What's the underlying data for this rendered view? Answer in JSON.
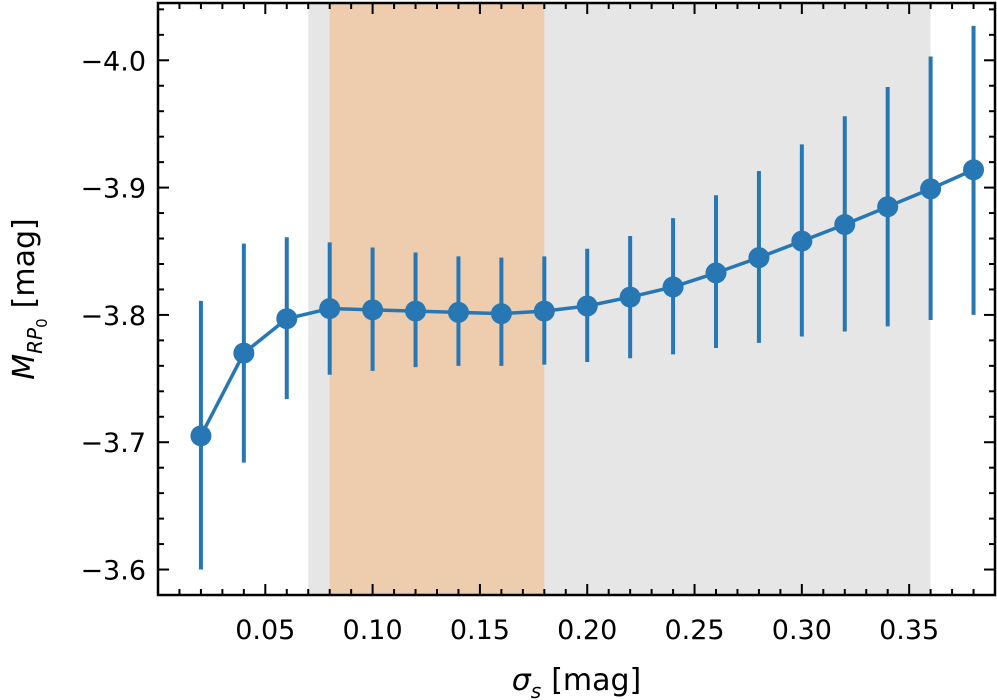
{
  "chart_data": {
    "type": "line",
    "xlabel_symbol": "σ",
    "xlabel_sub": "s",
    "xlabel_unit": "[mag]",
    "ylabel_symbol": "M",
    "ylabel_sub": "RP",
    "ylabel_subsub": "0",
    "ylabel_unit": "[mag]",
    "xlim": [
      0.0,
      0.39
    ],
    "ylim": [
      -3.58,
      -4.045
    ],
    "y_inverted": true,
    "x_ticks": [
      0.05,
      0.1,
      0.15,
      0.2,
      0.25,
      0.3,
      0.35
    ],
    "x_tick_labels": [
      "0.05",
      "0.10",
      "0.15",
      "0.20",
      "0.25",
      "0.30",
      "0.35"
    ],
    "y_ticks": [
      -3.6,
      -3.7,
      -3.8,
      -3.9,
      -4.0
    ],
    "y_tick_labels": [
      "−3.6",
      "−3.7",
      "−3.8",
      "−3.9",
      "−4.0"
    ],
    "x_minor_step": 0.01,
    "y_minor_step": 0.02,
    "grid": false,
    "bands": [
      {
        "x0": 0.07,
        "x1": 0.36,
        "color": "#e6e6e6"
      },
      {
        "x0": 0.08,
        "x1": 0.18,
        "color": "#edcdae"
      }
    ],
    "series": [
      {
        "color": "#2677b4",
        "x": [
          0.02,
          0.04,
          0.06,
          0.08,
          0.1,
          0.12,
          0.14,
          0.16,
          0.18,
          0.2,
          0.22,
          0.24,
          0.26,
          0.28,
          0.3,
          0.32,
          0.34,
          0.36,
          0.38
        ],
        "y": [
          -3.705,
          -3.77,
          -3.797,
          -3.805,
          -3.804,
          -3.803,
          -3.802,
          -3.801,
          -3.803,
          -3.807,
          -3.814,
          -3.822,
          -3.833,
          -3.845,
          -3.858,
          -3.871,
          -3.885,
          -3.899,
          -3.914
        ],
        "y_low": [
          -3.6,
          -3.684,
          -3.734,
          -3.753,
          -3.756,
          -3.759,
          -3.76,
          -3.76,
          -3.761,
          -3.763,
          -3.766,
          -3.769,
          -3.774,
          -3.778,
          -3.783,
          -3.787,
          -3.791,
          -3.796,
          -3.8
        ],
        "y_high": [
          -3.811,
          -3.856,
          -3.861,
          -3.857,
          -3.853,
          -3.849,
          -3.846,
          -3.845,
          -3.846,
          -3.852,
          -3.862,
          -3.876,
          -3.894,
          -3.913,
          -3.934,
          -3.956,
          -3.979,
          -4.003,
          -4.027
        ]
      }
    ]
  }
}
